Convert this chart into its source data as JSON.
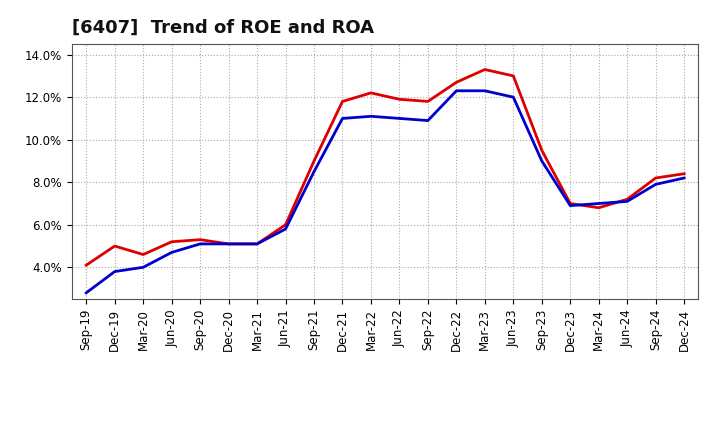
{
  "title": "[6407]  Trend of ROE and ROA",
  "ylim": [
    0.025,
    0.145
  ],
  "yticks": [
    0.04,
    0.06,
    0.08,
    0.1,
    0.12,
    0.14
  ],
  "ytick_labels": [
    "4.0%",
    "6.0%",
    "8.0%",
    "10.0%",
    "12.0%",
    "14.0%"
  ],
  "labels": [
    "Sep-19",
    "Dec-19",
    "Mar-20",
    "Jun-20",
    "Sep-20",
    "Dec-20",
    "Mar-21",
    "Jun-21",
    "Sep-21",
    "Dec-21",
    "Mar-22",
    "Jun-22",
    "Sep-22",
    "Dec-22",
    "Mar-23",
    "Jun-23",
    "Sep-23",
    "Dec-23",
    "Mar-24",
    "Jun-24",
    "Sep-24",
    "Dec-24"
  ],
  "ROE": [
    0.041,
    0.05,
    0.046,
    0.052,
    0.053,
    0.051,
    0.051,
    0.06,
    0.09,
    0.118,
    0.122,
    0.119,
    0.118,
    0.127,
    0.133,
    0.13,
    0.095,
    0.07,
    0.068,
    0.072,
    0.082,
    0.084
  ],
  "ROA": [
    0.028,
    0.038,
    0.04,
    0.047,
    0.051,
    0.051,
    0.051,
    0.058,
    0.085,
    0.11,
    0.111,
    0.11,
    0.109,
    0.123,
    0.123,
    0.12,
    0.09,
    0.069,
    0.07,
    0.071,
    0.079,
    0.082
  ],
  "roe_color": "#dd0000",
  "roa_color": "#0000cc",
  "bg_color": "#ffffff",
  "plot_bg_color": "#ffffff",
  "grid_color": "#aaaaaa",
  "line_width": 2.0,
  "title_fontsize": 13,
  "tick_fontsize": 8.5,
  "legend_fontsize": 10
}
